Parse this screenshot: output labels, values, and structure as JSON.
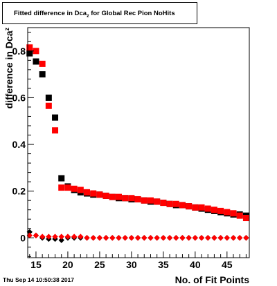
{
  "timestamp": "Thu Sep 14 10:50:38 2017",
  "chart_data": {
    "type": "scatter",
    "title_main": "Fitted difference in Dca",
    "title_sub": "z",
    "title_rest": " for Global Rec Pion NoHits",
    "xlabel": "No. of Fit Points",
    "ylabel_main": "difference in Dca",
    "ylabel_sub": "z",
    "xlim": [
      13.7,
      48.5
    ],
    "ylim": [
      -0.085,
      0.9
    ],
    "x_ticks": [
      15,
      20,
      25,
      30,
      35,
      40,
      45
    ],
    "y_ticks": [
      0,
      0.2,
      0.4,
      0.6,
      0.8
    ],
    "y_tick_labels": [
      "0",
      "0.2",
      "0.4",
      "0.6",
      "0.8"
    ],
    "colors": {
      "black": "#000000",
      "red": "#ff0000"
    },
    "series": [
      {
        "color": "black",
        "marker": "square",
        "points": [
          [
            14,
            0.79
          ],
          [
            15,
            0.755
          ],
          [
            16,
            0.7
          ],
          [
            17,
            0.6
          ],
          [
            18,
            0.515
          ],
          [
            19,
            0.255
          ],
          [
            20,
            0.22
          ],
          [
            21,
            0.205
          ],
          [
            22,
            0.195
          ],
          [
            23,
            0.19
          ],
          [
            24,
            0.185
          ],
          [
            25,
            0.185
          ],
          [
            26,
            0.18
          ],
          [
            27,
            0.175
          ],
          [
            28,
            0.17
          ],
          [
            29,
            0.17
          ],
          [
            30,
            0.165
          ],
          [
            31,
            0.165
          ],
          [
            32,
            0.16
          ],
          [
            33,
            0.155
          ],
          [
            34,
            0.155
          ],
          [
            35,
            0.15
          ],
          [
            36,
            0.145
          ],
          [
            37,
            0.14
          ],
          [
            38,
            0.14
          ],
          [
            39,
            0.135
          ],
          [
            40,
            0.13
          ],
          [
            41,
            0.125
          ],
          [
            42,
            0.12
          ],
          [
            43,
            0.115
          ],
          [
            44,
            0.11
          ],
          [
            45,
            0.105
          ],
          [
            46,
            0.1
          ],
          [
            47,
            0.1
          ],
          [
            48,
            0.095
          ]
        ]
      },
      {
        "color": "red",
        "marker": "square",
        "points": [
          [
            14,
            0.815
          ],
          [
            15,
            0.8
          ],
          [
            16,
            0.745
          ],
          [
            17,
            0.565
          ],
          [
            18,
            0.46
          ],
          [
            19,
            0.215
          ],
          [
            20,
            0.215
          ],
          [
            21,
            0.21
          ],
          [
            22,
            0.205
          ],
          [
            23,
            0.195
          ],
          [
            24,
            0.19
          ],
          [
            25,
            0.185
          ],
          [
            26,
            0.18
          ],
          [
            27,
            0.175
          ],
          [
            28,
            0.175
          ],
          [
            29,
            0.17
          ],
          [
            30,
            0.17
          ],
          [
            31,
            0.165
          ],
          [
            32,
            0.16
          ],
          [
            33,
            0.16
          ],
          [
            34,
            0.155
          ],
          [
            35,
            0.15
          ],
          [
            36,
            0.145
          ],
          [
            37,
            0.145
          ],
          [
            38,
            0.14
          ],
          [
            39,
            0.135
          ],
          [
            40,
            0.13
          ],
          [
            41,
            0.13
          ],
          [
            42,
            0.125
          ],
          [
            43,
            0.12
          ],
          [
            44,
            0.115
          ],
          [
            45,
            0.11
          ],
          [
            46,
            0.105
          ],
          [
            47,
            0.095
          ],
          [
            48,
            0.085
          ]
        ]
      },
      {
        "color": "black",
        "marker": "diamond",
        "points": [
          [
            14,
            0.025
          ],
          [
            15,
            0.01
          ],
          [
            16,
            0.0
          ],
          [
            17,
            -0.005
          ],
          [
            18,
            -0.005
          ],
          [
            19,
            -0.01
          ],
          [
            20,
            0.0
          ],
          [
            21,
            0.0
          ],
          [
            22,
            0.0
          ],
          [
            23,
            0.0
          ],
          [
            24,
            0.0
          ],
          [
            25,
            0.0
          ],
          [
            26,
            0.0
          ],
          [
            27,
            0.0
          ],
          [
            28,
            0.0
          ],
          [
            29,
            0.0
          ],
          [
            30,
            0.0
          ],
          [
            31,
            0.0
          ],
          [
            32,
            0.0
          ],
          [
            33,
            0.0
          ],
          [
            34,
            0.0
          ],
          [
            35,
            0.0
          ],
          [
            36,
            0.0
          ],
          [
            37,
            0.0
          ],
          [
            38,
            0.0
          ],
          [
            39,
            0.0
          ],
          [
            40,
            0.0
          ],
          [
            41,
            0.0
          ],
          [
            42,
            0.0
          ],
          [
            43,
            0.0
          ],
          [
            44,
            0.0
          ],
          [
            45,
            0.0
          ],
          [
            46,
            0.0
          ],
          [
            47,
            0.0
          ],
          [
            48,
            0.0
          ]
        ]
      },
      {
        "color": "red",
        "marker": "diamond",
        "points": [
          [
            14,
            0.01
          ],
          [
            15,
            0.01
          ],
          [
            16,
            0.005
          ],
          [
            17,
            0.005
          ],
          [
            18,
            0.005
          ],
          [
            19,
            0.005
          ],
          [
            20,
            0.005
          ],
          [
            21,
            0.005
          ],
          [
            22,
            0.005
          ],
          [
            23,
            0.0
          ],
          [
            24,
            0.0
          ],
          [
            25,
            0.0
          ],
          [
            26,
            0.0
          ],
          [
            27,
            0.0
          ],
          [
            28,
            0.0
          ],
          [
            29,
            0.0
          ],
          [
            30,
            0.0
          ],
          [
            31,
            0.0
          ],
          [
            32,
            0.0
          ],
          [
            33,
            0.0
          ],
          [
            34,
            0.0
          ],
          [
            35,
            0.0
          ],
          [
            36,
            0.0
          ],
          [
            37,
            0.0
          ],
          [
            38,
            0.0
          ],
          [
            39,
            0.0
          ],
          [
            40,
            0.0
          ],
          [
            41,
            0.0
          ],
          [
            42,
            0.0
          ],
          [
            43,
            0.0
          ],
          [
            44,
            0.0
          ],
          [
            45,
            0.0
          ],
          [
            46,
            0.0
          ],
          [
            47,
            0.0
          ],
          [
            48,
            0.0
          ]
        ]
      }
    ]
  }
}
